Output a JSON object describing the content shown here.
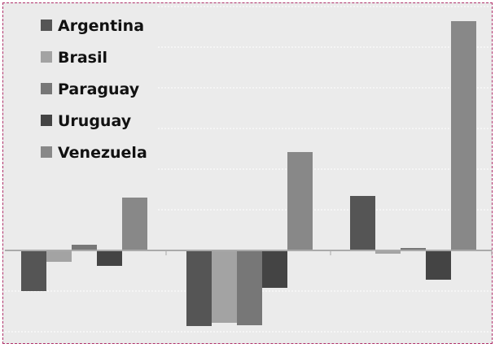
{
  "chart_data": {
    "type": "bar",
    "categories": [
      "",
      "",
      ""
    ],
    "series": [
      {
        "name": "Argentina",
        "values": [
          -5,
          -9.3,
          6.7
        ],
        "color": "#555555"
      },
      {
        "name": "Brasil",
        "values": [
          -1.4,
          -8.9,
          -0.4
        ],
        "color": "#a3a3a3"
      },
      {
        "name": "Paraguay",
        "values": [
          0.7,
          -9.2,
          0.3
        ],
        "color": "#777777"
      },
      {
        "name": "Uruguay",
        "values": [
          -1.9,
          -4.6,
          -3.6
        ],
        "color": "#444444"
      },
      {
        "name": "Venezuela",
        "values": [
          6.5,
          12.1,
          28.2
        ],
        "color": "#888888"
      }
    ],
    "ylim": [
      -10,
      30
    ],
    "y_gridlines": [
      -10,
      -5,
      0,
      5,
      10,
      15,
      20,
      25,
      30
    ],
    "grid": true,
    "legend_position": "top-left",
    "title": "",
    "xlabel": "",
    "ylabel": ""
  }
}
